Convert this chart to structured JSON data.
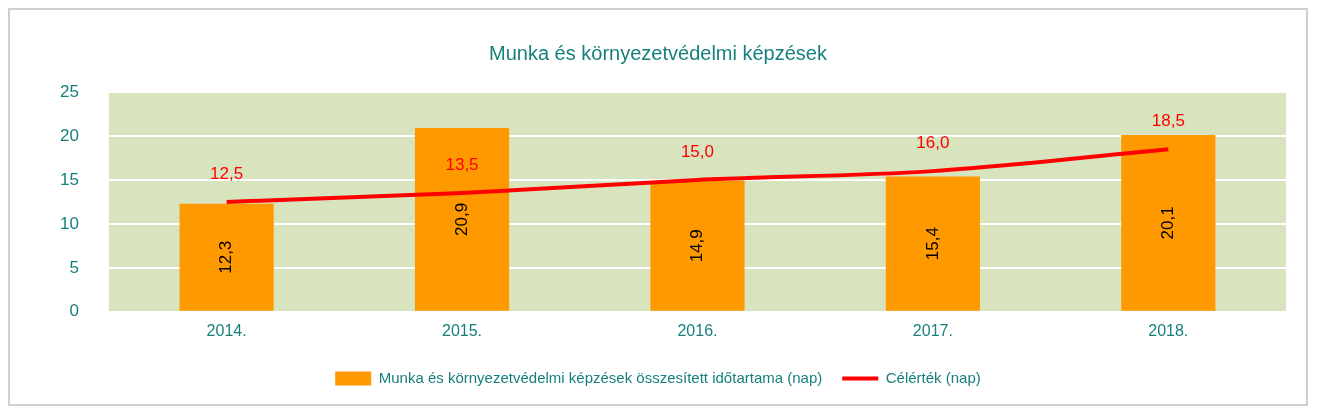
{
  "chart_data": {
    "type": "bar",
    "title": "Munka és környezetvédelmi képzések",
    "categories": [
      "2014.",
      "2015.",
      "2016.",
      "2017.",
      "2018."
    ],
    "series": [
      {
        "name": "Munka és környezetvédelmi képzések összesített időtartama (nap)",
        "color": "#ff9900",
        "values": [
          12.3,
          20.9,
          14.9,
          15.4,
          20.1
        ],
        "value_labels": [
          "12,3",
          "20,9",
          "14,9",
          "15,4",
          "20,1"
        ]
      },
      {
        "name": "Célérték (nap)",
        "type": "line",
        "color": "#ff0000",
        "marker": "none",
        "values": [
          12.5,
          13.5,
          15.0,
          16.0,
          18.5
        ],
        "value_labels": [
          "12,5",
          "13,5",
          "15,0",
          "16,0",
          "18,5"
        ]
      }
    ],
    "ylim": [
      0,
      25
    ],
    "yticks": [
      0,
      5,
      10,
      15,
      20,
      25
    ],
    "grid": "y",
    "legend": "bottom"
  }
}
